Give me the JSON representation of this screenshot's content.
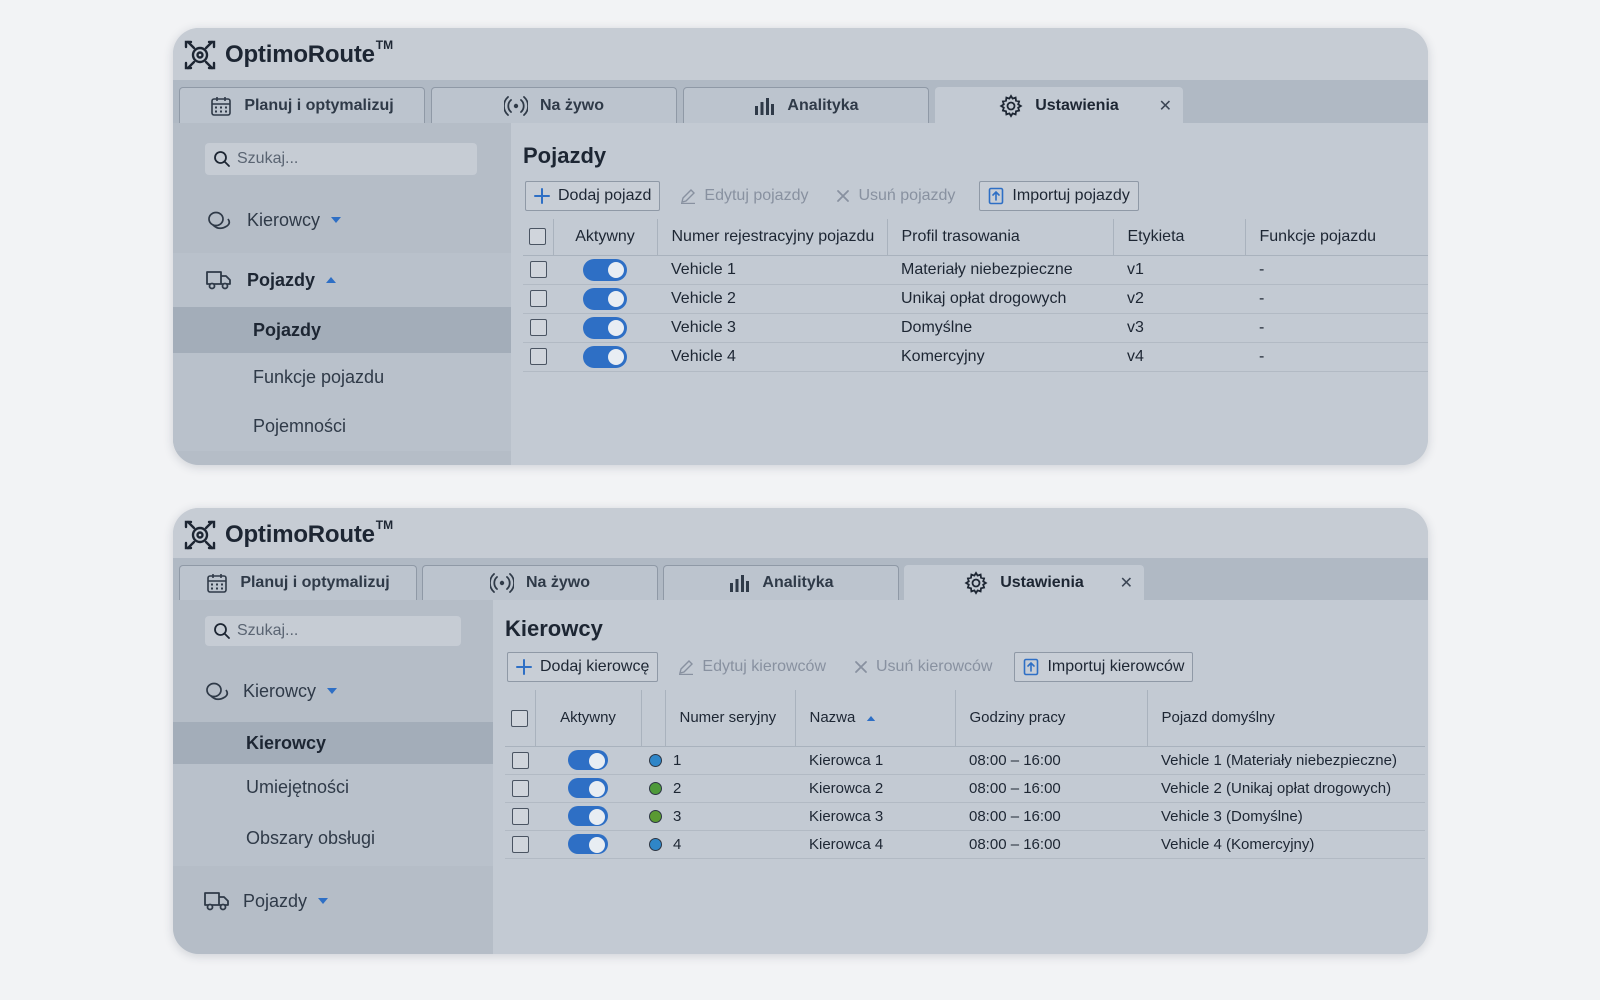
{
  "brand": {
    "name": "OptimoRoute",
    "tm": "TM"
  },
  "tabs": [
    {
      "label": "Planuj i optymalizuj",
      "icon": "calendar-icon"
    },
    {
      "label": "Na żywo",
      "icon": "broadcast-icon"
    },
    {
      "label": "Analityka",
      "icon": "bar-chart-icon"
    },
    {
      "label": "Ustawienia",
      "icon": "gear-icon",
      "close": "✕"
    }
  ],
  "search_placeholder": "Szukaj...",
  "vehicles_view": {
    "nav": {
      "drivers": "Kierowcy",
      "vehicles": "Pojazdy",
      "sub_items": [
        "Pojazdy",
        "Funkcje pojazdu",
        "Pojemności"
      ]
    },
    "title": "Pojazdy",
    "toolbar": {
      "add": "Dodaj pojazd",
      "edit": "Edytuj pojazdy",
      "delete": "Usuń pojazdy",
      "import": "Importuj pojazdy"
    },
    "columns": [
      "Aktywny",
      "Numer rejestracyjny pojazdu",
      "Profil trasowania",
      "Etykieta",
      "Funkcje pojazdu"
    ],
    "rows": [
      {
        "plate": "Vehicle 1",
        "profile": "Materiały niebezpieczne",
        "label": "v1",
        "features": "-"
      },
      {
        "plate": "Vehicle 2",
        "profile": "Unikaj opłat drogowych",
        "label": "v2",
        "features": "-"
      },
      {
        "plate": "Vehicle 3",
        "profile": "Domyślne",
        "label": "v3",
        "features": "-"
      },
      {
        "plate": "Vehicle 4",
        "profile": "Komercyjny",
        "label": "v4",
        "features": "-"
      }
    ]
  },
  "drivers_view": {
    "nav": {
      "drivers": "Kierowcy",
      "sub_items": [
        "Kierowcy",
        "Umiejętności",
        "Obszary obsługi"
      ],
      "vehicles": "Pojazdy"
    },
    "title": "Kierowcy",
    "toolbar": {
      "add": "Dodaj kierowcę",
      "edit": "Edytuj kierowców",
      "delete": "Usuń kierowców",
      "import": "Importuj kierowców"
    },
    "columns": [
      "Aktywny",
      "Numer seryjny",
      "Nazwa",
      "Godziny pracy",
      "Pojazd domyślny"
    ],
    "rows": [
      {
        "color": "#2f86c8",
        "serial": "1",
        "name": "Kierowca 1",
        "hours": "08:00 – 16:00",
        "vehicle": "Vehicle 1 (Materiały niebezpieczne)"
      },
      {
        "color": "#4e9a3a",
        "serial": "2",
        "name": "Kierowca 2",
        "hours": "08:00 – 16:00",
        "vehicle": "Vehicle 2 (Unikaj opłat drogowych)"
      },
      {
        "color": "#5a9a32",
        "serial": "3",
        "name": "Kierowca 3",
        "hours": "08:00 – 16:00",
        "vehicle": "Vehicle 3 (Domyślne)"
      },
      {
        "color": "#2f86c8",
        "serial": "4",
        "name": "Kierowca 4",
        "hours": "08:00 – 16:00",
        "vehicle": "Vehicle 4 (Komercyjny)"
      }
    ]
  },
  "colors": {
    "accent": "#2e6fc5"
  }
}
